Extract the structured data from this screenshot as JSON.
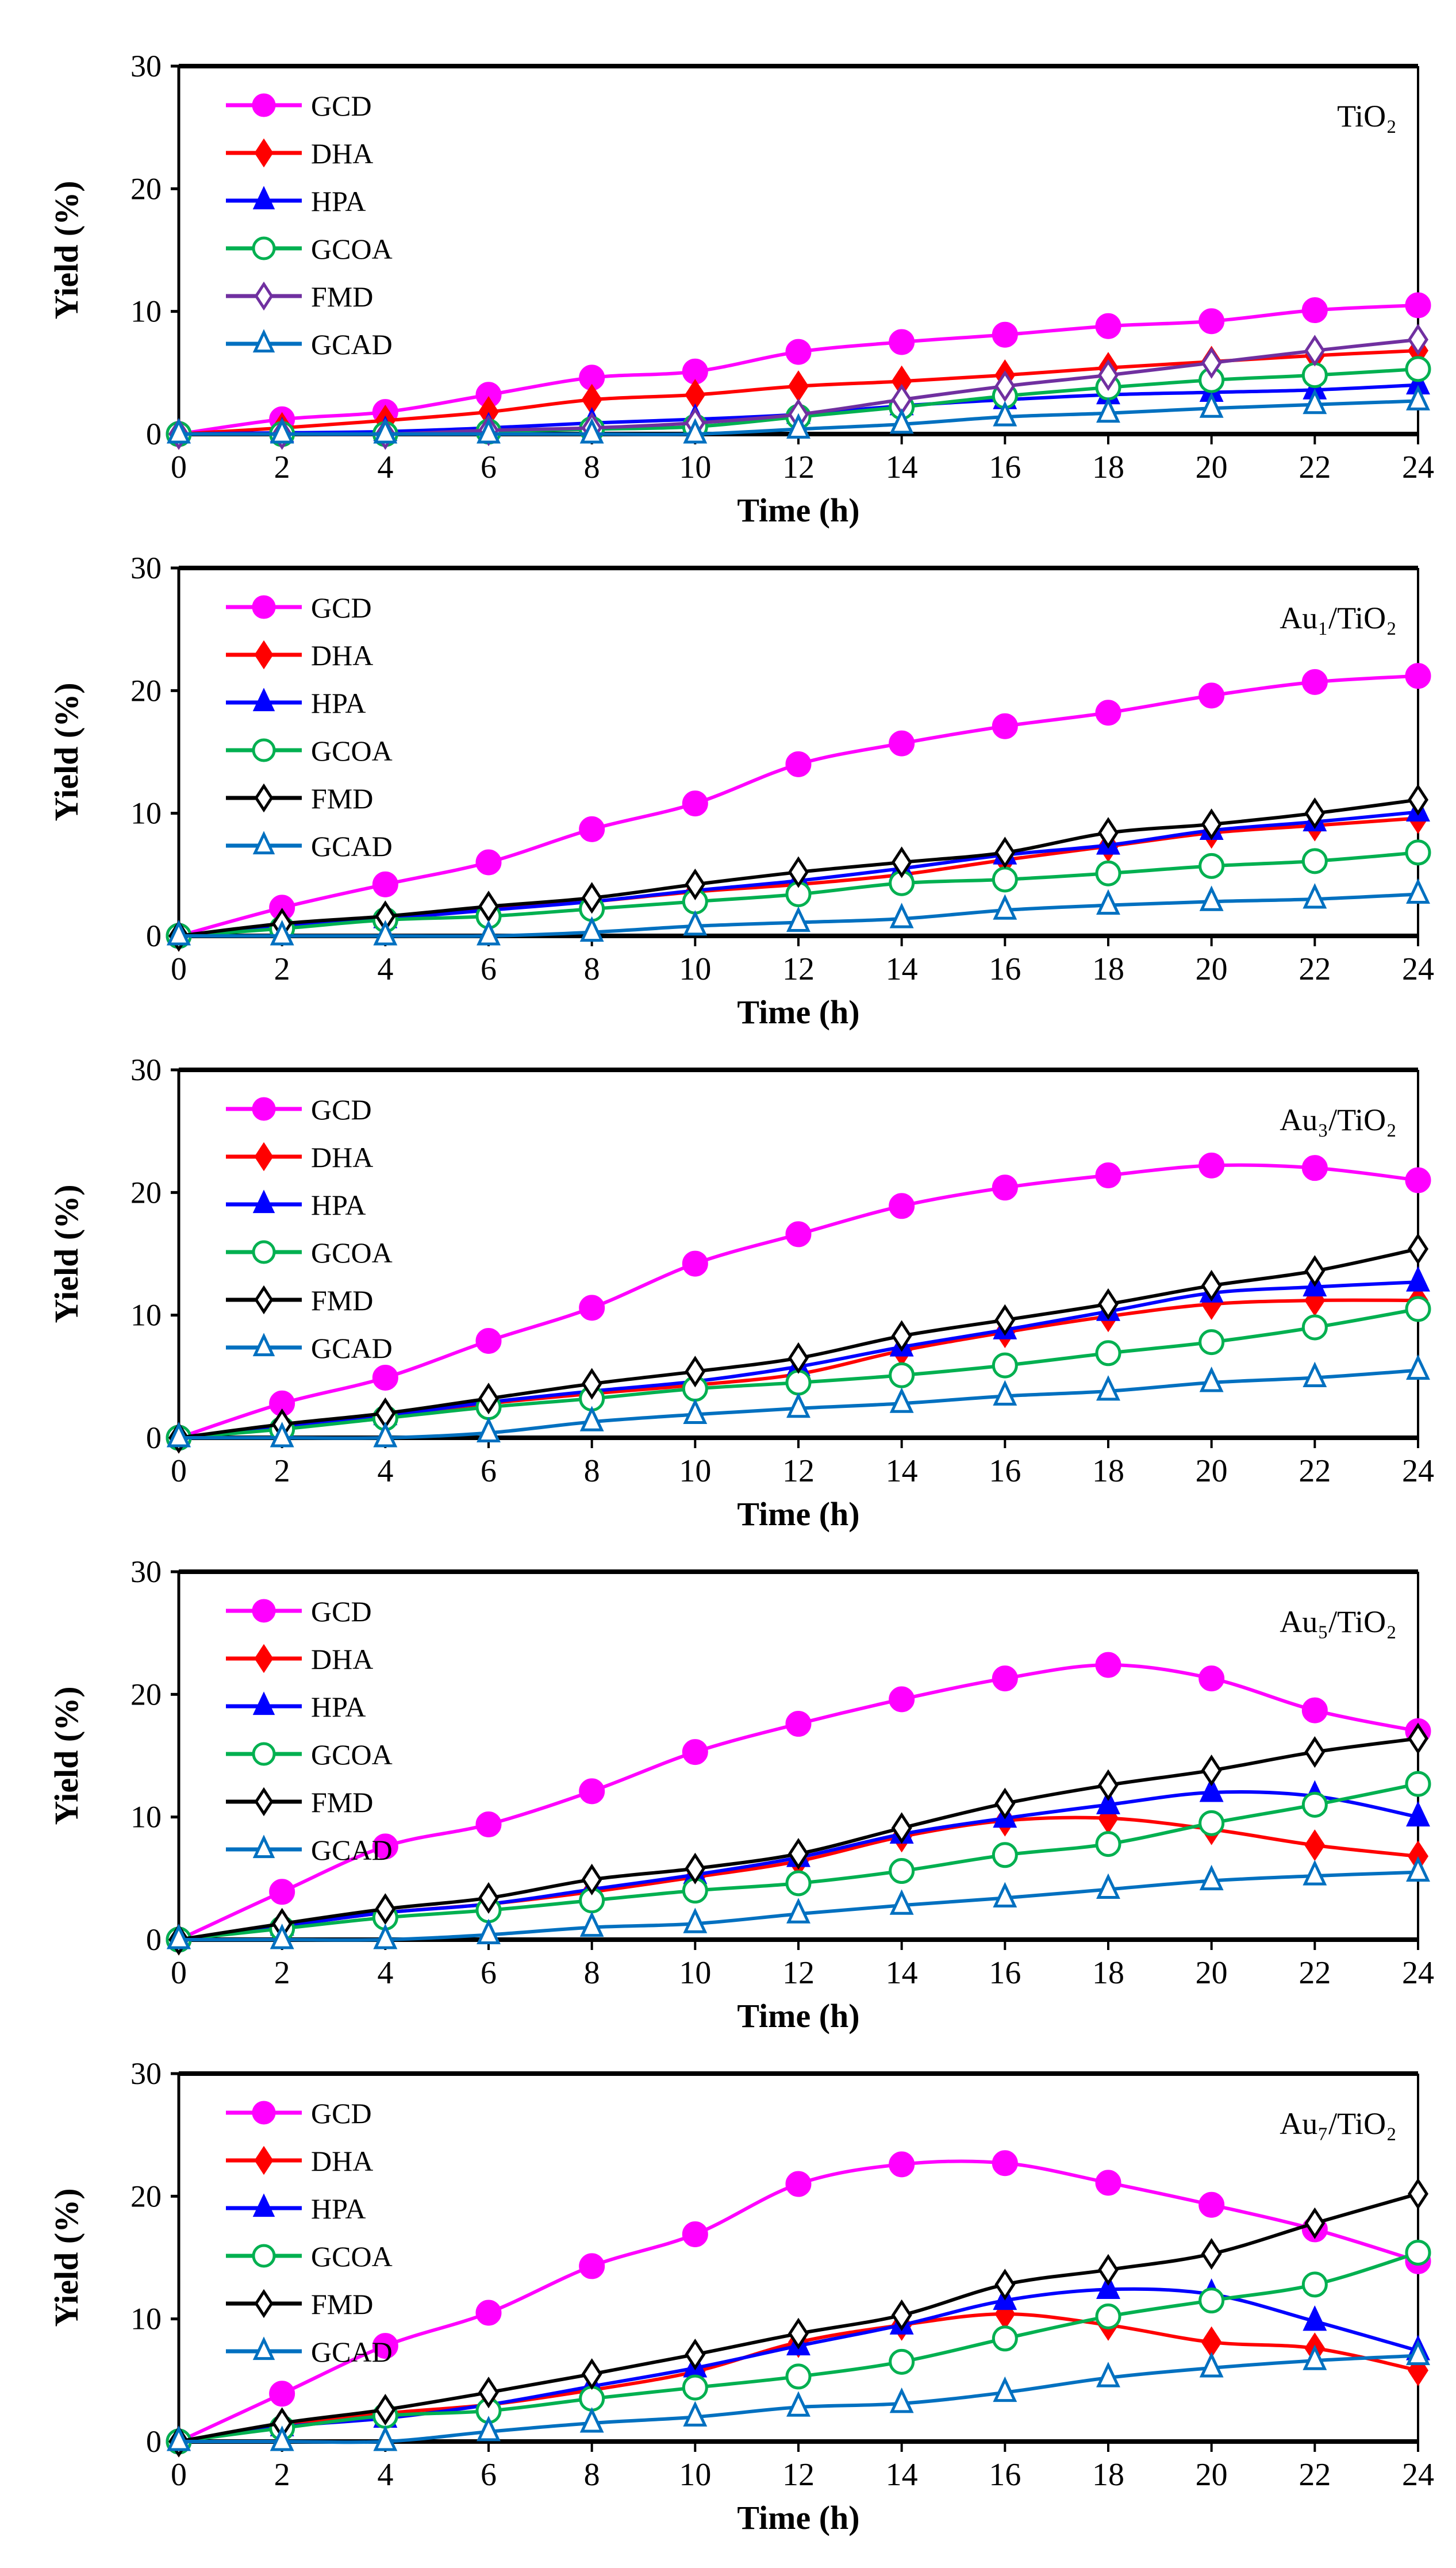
{
  "chart_data": {
    "type": "line",
    "x": [
      0,
      2,
      4,
      6,
      8,
      10,
      12,
      14,
      16,
      18,
      20,
      22,
      24
    ],
    "xlabel": "Time (h)",
    "ylabel": "Yield (%)",
    "xlim": [
      0,
      24
    ],
    "ylim": [
      0,
      30
    ],
    "xticks": [
      "0",
      "2",
      "4",
      "6",
      "8",
      "10",
      "12",
      "14",
      "16",
      "18",
      "20",
      "22",
      "24"
    ],
    "yticks": [
      "0",
      "10",
      "20",
      "30"
    ],
    "legend_placement": "top-left",
    "series_styles": {
      "GCD": {
        "color": "#FF00FF",
        "marker": "circle",
        "filled": true
      },
      "DHA": {
        "color": "#FF0000",
        "marker": "diamond",
        "filled": true
      },
      "HPA": {
        "color": "#0000FF",
        "marker": "triangle",
        "filled": true
      },
      "GCOA": {
        "color": "#00B050",
        "marker": "circle",
        "filled": false
      },
      "FMD": {
        "color": "#000000",
        "marker": "diamond",
        "filled": false
      },
      "GCAD": {
        "color": "#0070C0",
        "marker": "triangle",
        "filled": false
      }
    },
    "panels": [
      {
        "label": "TiO₂",
        "fmd_color": "#7030A0",
        "series": [
          {
            "name": "GCD",
            "values": [
              0,
              1.2,
              1.8,
              3.2,
              4.6,
              5.1,
              6.7,
              7.5,
              8.1,
              8.8,
              9.2,
              10.1,
              10.5
            ]
          },
          {
            "name": "DHA",
            "values": [
              0,
              0.5,
              1.1,
              1.8,
              2.8,
              3.2,
              3.9,
              4.3,
              4.8,
              5.4,
              5.9,
              6.4,
              6.8
            ]
          },
          {
            "name": "HPA",
            "values": [
              0,
              0.1,
              0.2,
              0.5,
              0.9,
              1.2,
              1.6,
              2.3,
              2.8,
              3.2,
              3.4,
              3.6,
              4.0
            ]
          },
          {
            "name": "GCOA",
            "values": [
              0,
              0,
              0,
              0.2,
              0.4,
              0.6,
              1.4,
              2.2,
              3.1,
              3.8,
              4.4,
              4.8,
              5.3
            ]
          },
          {
            "name": "FMD",
            "values": [
              0,
              0,
              0,
              0.3,
              0.5,
              0.9,
              1.6,
              2.8,
              3.9,
              4.8,
              5.8,
              6.8,
              7.7
            ]
          },
          {
            "name": "GCAD",
            "values": [
              0,
              0,
              0,
              0,
              0,
              0,
              0.4,
              0.8,
              1.4,
              1.7,
              2.1,
              2.4,
              2.7
            ]
          }
        ]
      },
      {
        "label": "Au₁/TiO₂",
        "series": [
          {
            "name": "GCD",
            "values": [
              0,
              2.3,
              4.2,
              6.0,
              8.7,
              10.8,
              14.0,
              15.7,
              17.1,
              18.2,
              19.6,
              20.7,
              21.2
            ]
          },
          {
            "name": "DHA",
            "values": [
              0,
              0.8,
              1.5,
              2.2,
              2.8,
              3.6,
              4.2,
              5.0,
              6.2,
              7.3,
              8.4,
              9.0,
              9.6
            ]
          },
          {
            "name": "HPA",
            "values": [
              0,
              0.8,
              1.4,
              2.1,
              2.8,
              3.7,
              4.5,
              5.5,
              6.6,
              7.4,
              8.6,
              9.3,
              10.1
            ]
          },
          {
            "name": "GCOA",
            "values": [
              0,
              0.6,
              1.3,
              1.6,
              2.2,
              2.8,
              3.4,
              4.3,
              4.6,
              5.1,
              5.7,
              6.1,
              6.8
            ]
          },
          {
            "name": "FMD",
            "values": [
              0,
              1.0,
              1.6,
              2.4,
              3.1,
              4.2,
              5.2,
              6.0,
              6.8,
              8.4,
              9.1,
              10.0,
              11.1
            ]
          },
          {
            "name": "GCAD",
            "values": [
              0,
              0,
              0,
              0,
              0.3,
              0.8,
              1.1,
              1.4,
              2.1,
              2.5,
              2.8,
              3.0,
              3.4
            ]
          }
        ]
      },
      {
        "label": "Au₃/TiO₂",
        "series": [
          {
            "name": "GCD",
            "values": [
              0,
              2.8,
              4.9,
              7.9,
              10.6,
              14.2,
              16.6,
              18.9,
              20.4,
              21.4,
              22.2,
              22.0,
              21.0
            ]
          },
          {
            "name": "DHA",
            "values": [
              0,
              0.9,
              1.8,
              2.8,
              3.6,
              4.3,
              5.2,
              7.1,
              8.6,
              9.9,
              10.9,
              11.2,
              11.2
            ]
          },
          {
            "name": "HPA",
            "values": [
              0,
              0.9,
              1.8,
              2.9,
              3.8,
              4.6,
              5.8,
              7.4,
              8.8,
              10.3,
              11.8,
              12.3,
              12.7
            ]
          },
          {
            "name": "GCOA",
            "values": [
              0,
              0.7,
              1.6,
              2.5,
              3.2,
              4.0,
              4.5,
              5.1,
              5.9,
              6.9,
              7.8,
              9.0,
              10.5
            ]
          },
          {
            "name": "FMD",
            "values": [
              0,
              1.1,
              2.0,
              3.2,
              4.4,
              5.4,
              6.5,
              8.3,
              9.6,
              10.9,
              12.4,
              13.6,
              15.4
            ]
          },
          {
            "name": "GCAD",
            "values": [
              0,
              0,
              0,
              0.4,
              1.3,
              1.9,
              2.4,
              2.8,
              3.4,
              3.8,
              4.5,
              4.9,
              5.5
            ]
          }
        ]
      },
      {
        "label": "Au₅/TiO₂",
        "series": [
          {
            "name": "GCD",
            "values": [
              0,
              3.9,
              7.6,
              9.4,
              12.1,
              15.3,
              17.6,
              19.6,
              21.3,
              22.4,
              21.3,
              18.7,
              17.0
            ]
          },
          {
            "name": "DHA",
            "values": [
              0,
              1.1,
              2.2,
              2.9,
              3.9,
              5.1,
              6.4,
              8.4,
              9.7,
              9.9,
              9.0,
              7.7,
              6.8
            ]
          },
          {
            "name": "HPA",
            "values": [
              0,
              1.1,
              2.2,
              2.9,
              4.1,
              5.3,
              6.7,
              8.6,
              9.9,
              11.0,
              12.0,
              11.7,
              10.0
            ]
          },
          {
            "name": "GCOA",
            "values": [
              0,
              0.9,
              1.8,
              2.4,
              3.2,
              4.0,
              4.6,
              5.6,
              6.9,
              7.8,
              9.5,
              11.0,
              12.7
            ]
          },
          {
            "name": "FMD",
            "values": [
              0,
              1.3,
              2.5,
              3.4,
              4.9,
              5.8,
              7.0,
              9.1,
              11.1,
              12.6,
              13.8,
              15.3,
              16.4
            ]
          },
          {
            "name": "GCAD",
            "values": [
              0,
              0,
              0,
              0.4,
              1.0,
              1.3,
              2.1,
              2.8,
              3.4,
              4.1,
              4.8,
              5.2,
              5.5
            ]
          }
        ]
      },
      {
        "label": "Au₇/TiO₂",
        "series": [
          {
            "name": "GCD",
            "values": [
              0,
              3.9,
              7.8,
              10.5,
              14.3,
              16.9,
              21.0,
              22.6,
              22.7,
              21.1,
              19.3,
              17.3,
              14.7
            ]
          },
          {
            "name": "DHA",
            "values": [
              0,
              1.3,
              2.3,
              3.0,
              4.2,
              5.7,
              8.1,
              9.5,
              10.4,
              9.5,
              8.1,
              7.6,
              5.8
            ]
          },
          {
            "name": "HPA",
            "values": [
              0,
              1.2,
              1.9,
              3.0,
              4.5,
              6.0,
              7.8,
              9.5,
              11.5,
              12.4,
              12.0,
              9.8,
              7.4
            ]
          },
          {
            "name": "GCOA",
            "values": [
              0,
              1.1,
              2.1,
              2.5,
              3.5,
              4.4,
              5.3,
              6.5,
              8.4,
              10.2,
              11.5,
              12.8,
              15.4
            ]
          },
          {
            "name": "FMD",
            "values": [
              0,
              1.5,
              2.6,
              4.0,
              5.5,
              7.1,
              8.8,
              10.3,
              12.8,
              14.0,
              15.3,
              17.8,
              20.2
            ]
          },
          {
            "name": "GCAD",
            "values": [
              0,
              0,
              0,
              0.8,
              1.5,
              2.0,
              2.8,
              3.1,
              4.0,
              5.2,
              6.0,
              6.6,
              7.0
            ]
          }
        ]
      }
    ]
  }
}
